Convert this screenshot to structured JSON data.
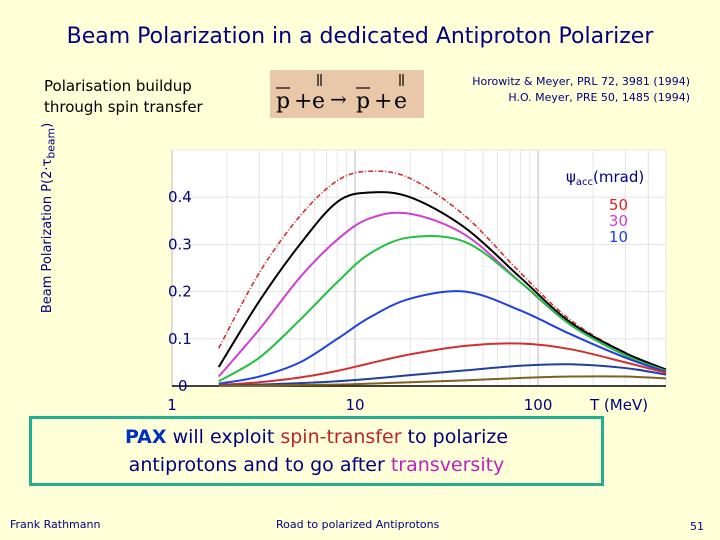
{
  "title": "Beam Polarization in a dedicated Antiproton Polarizer",
  "subtitle": [
    "Polarisation buildup",
    "through spin transfer"
  ],
  "references": [
    "Horowitz & Meyer, PRL 72, 3981 (1994)",
    "H.O. Meyer, PRE 50, 1485 (1994)"
  ],
  "equation": {
    "p": "p",
    "plus": "+",
    "e": "e",
    "arrow": "→",
    "p2": "p",
    "plus2": "+",
    "e2": "e"
  },
  "footer": {
    "author": "Frank Rathmann",
    "talk": "Road to polarized Antiprotons",
    "page": "51"
  },
  "pax": {
    "pax": "PAX",
    "t1": " will exploit ",
    "spin": "spin-transfer",
    "t2": " to polarize",
    "t3": "antiprotons and to go after ",
    "trans": "transversity"
  },
  "chart_data": {
    "type": "line",
    "xlabel": "T (MeV)",
    "ylabel_main": "Beam Polarization P(2·τ",
    "ylabel_sub": "beam",
    "ylabel_end": ")",
    "xscale": "log",
    "xlim": [
      1,
      500
    ],
    "ylim": [
      0,
      0.5
    ],
    "xticks": [
      "1",
      "10",
      "100"
    ],
    "yticks": [
      "0",
      "0.1",
      "0.2",
      "0.3",
      "0.4"
    ],
    "legend_title": "ψacc(mrad)",
    "legend_psi": "ψ",
    "legend_sub": "acc",
    "legend_unit": "(mrad)",
    "legend_entries": [
      {
        "label": "50",
        "color": "#e02020"
      },
      {
        "label": "30",
        "color": "#d040d0"
      },
      {
        "label": "10",
        "color": "#2040e0"
      }
    ],
    "series": [
      {
        "color": "#d03030",
        "dashed": true,
        "x": [
          1.8,
          3,
          5,
          8,
          12,
          20,
          40,
          80,
          150,
          300,
          500
        ],
        "y": [
          0.08,
          0.24,
          0.36,
          0.435,
          0.455,
          0.44,
          0.36,
          0.24,
          0.14,
          0.07,
          0.035
        ]
      },
      {
        "color": "#000000",
        "dashed": false,
        "x": [
          1.8,
          3,
          5,
          8,
          12,
          20,
          40,
          80,
          150,
          300,
          500
        ],
        "y": [
          0.04,
          0.18,
          0.3,
          0.39,
          0.41,
          0.4,
          0.335,
          0.23,
          0.135,
          0.07,
          0.035
        ]
      },
      {
        "color": "#d040d0",
        "dashed": false,
        "x": [
          1.8,
          3,
          5,
          8,
          12,
          20,
          40,
          80,
          150,
          300,
          500
        ],
        "y": [
          0.02,
          0.12,
          0.23,
          0.31,
          0.355,
          0.365,
          0.32,
          0.22,
          0.13,
          0.065,
          0.032
        ]
      },
      {
        "color": "#20c040",
        "dashed": false,
        "x": [
          1.8,
          3,
          5,
          8,
          12,
          20,
          40,
          80,
          150,
          300,
          500
        ],
        "y": [
          0.01,
          0.06,
          0.14,
          0.22,
          0.28,
          0.315,
          0.305,
          0.22,
          0.13,
          0.065,
          0.032
        ]
      },
      {
        "color": "#2040e0",
        "dashed": false,
        "x": [
          1.8,
          3,
          5,
          8,
          12,
          20,
          40,
          80,
          150,
          300,
          500
        ],
        "y": [
          0.005,
          0.02,
          0.05,
          0.1,
          0.145,
          0.185,
          0.2,
          0.16,
          0.11,
          0.06,
          0.03
        ]
      },
      {
        "color": "#d03030",
        "dashed": false,
        "x": [
          1.8,
          3,
          5,
          8,
          12,
          20,
          40,
          80,
          150,
          300,
          500
        ],
        "y": [
          0.002,
          0.008,
          0.018,
          0.032,
          0.048,
          0.067,
          0.085,
          0.09,
          0.078,
          0.05,
          0.028
        ]
      },
      {
        "color": "#2040a0",
        "dashed": false,
        "x": [
          1.8,
          3,
          5,
          8,
          12,
          20,
          40,
          80,
          150,
          300,
          500
        ],
        "y": [
          0.001,
          0.003,
          0.006,
          0.01,
          0.015,
          0.023,
          0.033,
          0.043,
          0.046,
          0.038,
          0.024
        ]
      },
      {
        "color": "#806020",
        "dashed": false,
        "x": [
          1.8,
          3,
          5,
          8,
          12,
          20,
          40,
          80,
          150,
          300,
          500
        ],
        "y": [
          0.0005,
          0.001,
          0.002,
          0.003,
          0.005,
          0.008,
          0.012,
          0.017,
          0.02,
          0.02,
          0.016
        ]
      }
    ]
  }
}
